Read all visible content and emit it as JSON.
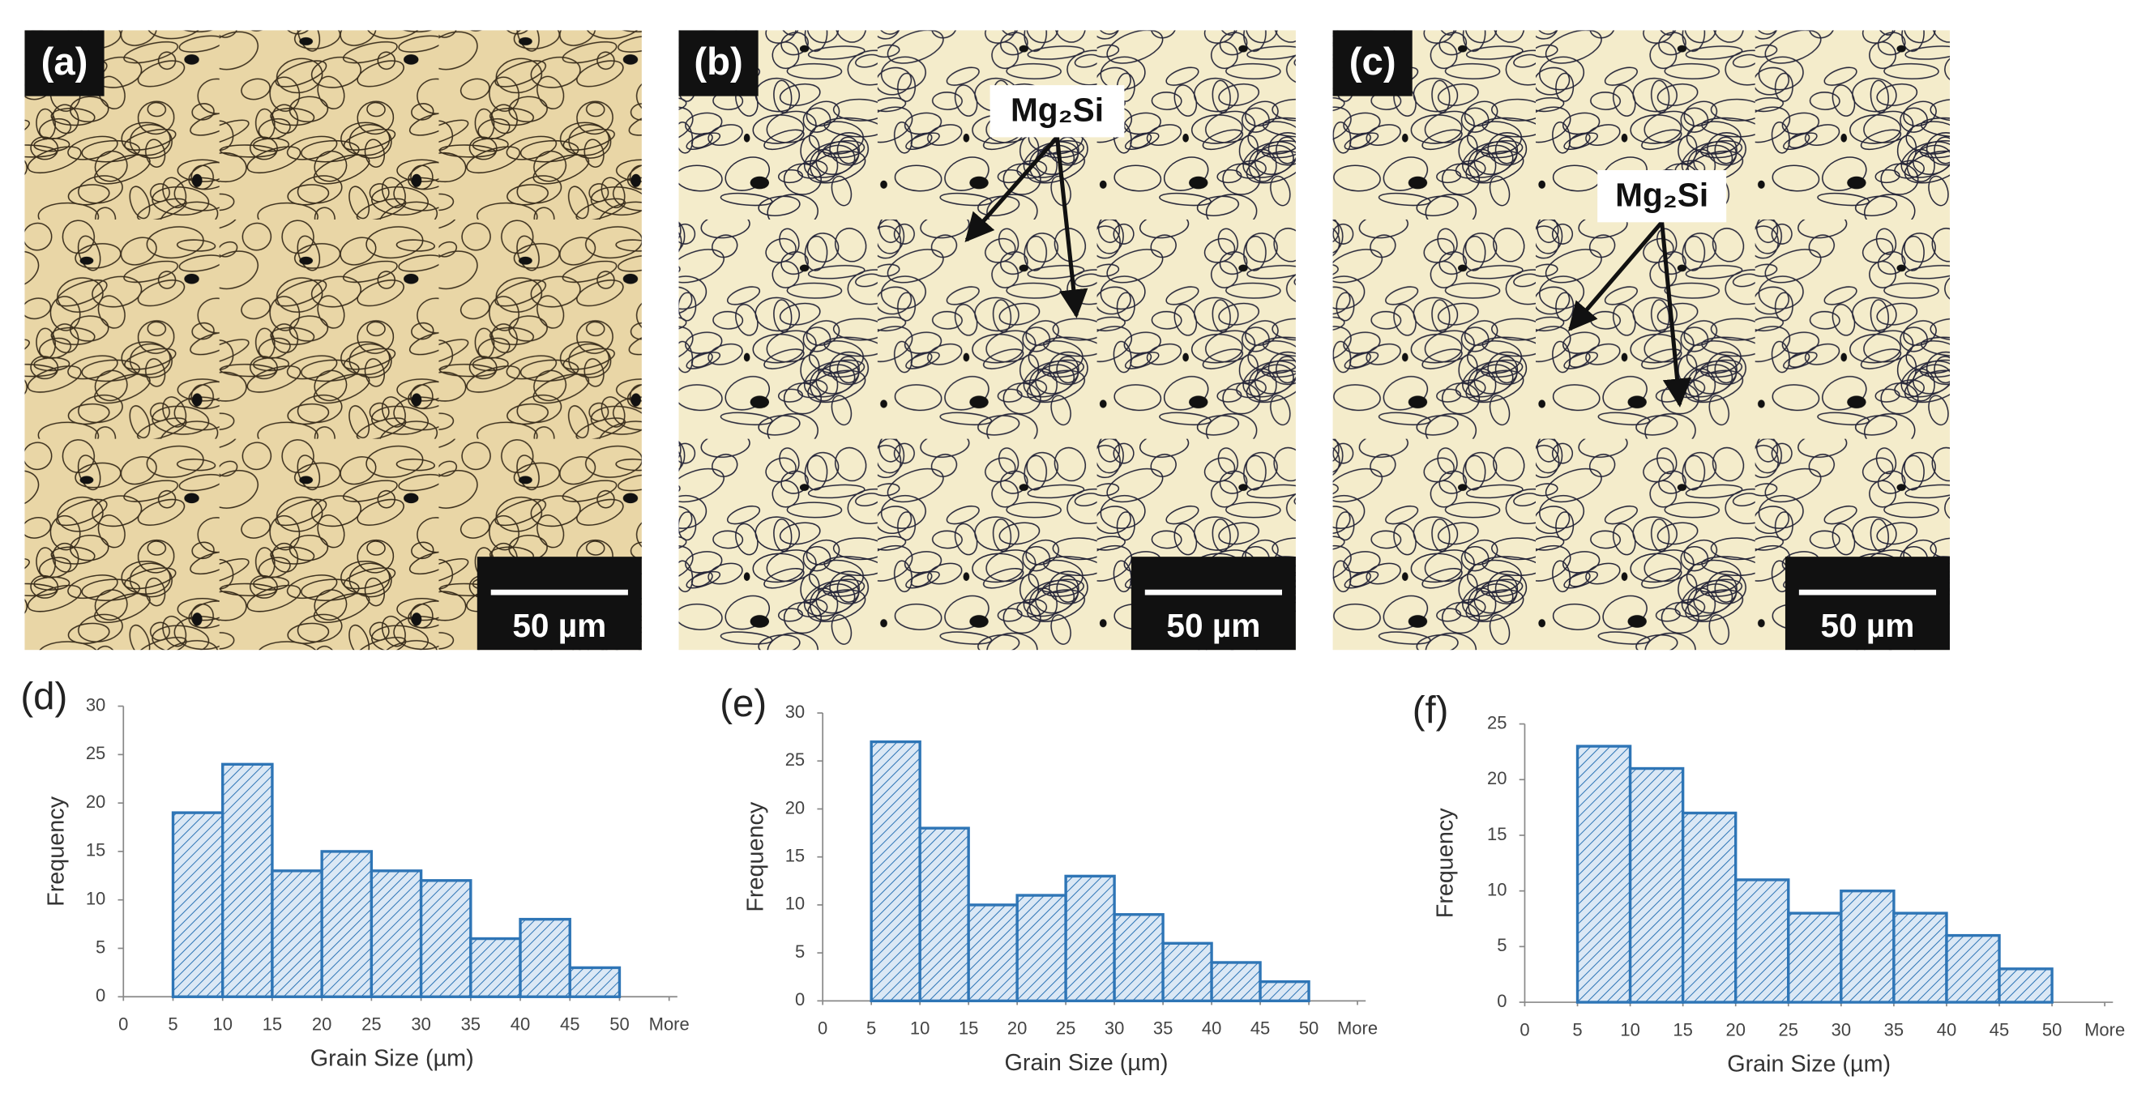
{
  "micrographs": [
    {
      "label": "(a)",
      "scale_bar": "50 µm"
    },
    {
      "label": "(b)",
      "scale_bar": "50 µm",
      "annotation": "Mg₂Si"
    },
    {
      "label": "(c)",
      "scale_bar": "50 µm",
      "annotation": "Mg₂Si"
    }
  ],
  "chart_data": [
    {
      "type": "histogram",
      "panel_label": "(d)",
      "x_label": "Grain Size (µm)",
      "y_label": "Frequency",
      "bins": [
        5,
        10,
        15,
        20,
        25,
        30,
        35,
        40,
        45,
        50
      ],
      "values": [
        19,
        24,
        13,
        15,
        13,
        12,
        6,
        8,
        3
      ],
      "color": "#2e75b6",
      "xlim": [
        0,
        55
      ],
      "xticks": [
        0,
        5,
        10,
        15,
        20,
        25,
        30,
        35,
        40,
        45,
        50,
        {
          "value": 55,
          "label": "More"
        }
      ],
      "ylim": [
        0,
        30
      ],
      "yticks": [
        0,
        5,
        10,
        15,
        20,
        25,
        30
      ]
    },
    {
      "type": "histogram",
      "panel_label": "(e)",
      "x_label": "Grain Size (µm)",
      "y_label": "Frequency",
      "bins": [
        5,
        10,
        15,
        20,
        25,
        30,
        35,
        40,
        45,
        50
      ],
      "values": [
        27,
        18,
        10,
        11,
        13,
        9,
        6,
        4,
        2
      ],
      "color": "#2e75b6",
      "xlim": [
        0,
        55
      ],
      "xticks": [
        0,
        5,
        10,
        15,
        20,
        25,
        30,
        35,
        40,
        45,
        50,
        {
          "value": 55,
          "label": "More"
        }
      ],
      "ylim": [
        0,
        30
      ],
      "yticks": [
        0,
        5,
        10,
        15,
        20,
        25,
        30
      ]
    },
    {
      "type": "histogram",
      "panel_label": "(f)",
      "x_label": "Grain Size (µm)",
      "y_label": "Frequency",
      "bins": [
        5,
        10,
        15,
        20,
        25,
        30,
        35,
        40,
        45,
        50
      ],
      "values": [
        23,
        21,
        17,
        11,
        8,
        10,
        8,
        6,
        3
      ],
      "color": "#2e75b6",
      "xlim": [
        0,
        55
      ],
      "xticks": [
        0,
        5,
        10,
        15,
        20,
        25,
        30,
        35,
        40,
        45,
        50,
        {
          "value": 55,
          "label": "More"
        }
      ],
      "ylim": [
        0,
        25
      ],
      "yticks": [
        0,
        5,
        10,
        15,
        20,
        25
      ]
    }
  ]
}
